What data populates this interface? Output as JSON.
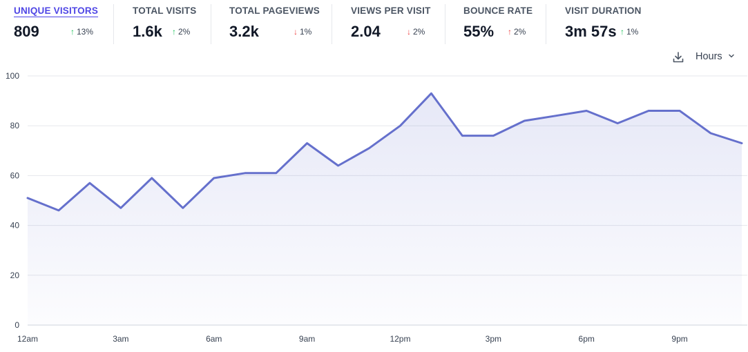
{
  "stats": [
    {
      "label": "UNIQUE VISITORS",
      "value": "809",
      "change": "13%",
      "direction": "up",
      "active": true
    },
    {
      "label": "TOTAL VISITS",
      "value": "1.6k",
      "change": "2%",
      "direction": "up",
      "active": false
    },
    {
      "label": "TOTAL PAGEVIEWS",
      "value": "3.2k",
      "change": "1%",
      "direction": "down",
      "active": false
    },
    {
      "label": "VIEWS PER VISIT",
      "value": "2.04",
      "change": "2%",
      "direction": "down",
      "active": false
    },
    {
      "label": "BOUNCE RATE",
      "value": "55%",
      "change": "2%",
      "direction": "up",
      "active": false
    },
    {
      "label": "VISIT DURATION",
      "value": "3m 57s",
      "change": "1%",
      "direction": "up",
      "active": false
    }
  ],
  "controls": {
    "download_icon": "download-icon",
    "interval_label": "Hours",
    "interval_icon": "chevron-down-icon"
  },
  "colors": {
    "line": "#6570cc",
    "accent": "#4f46e5",
    "grid": "#e5e7eb",
    "up": "#22c55e",
    "down": "#ef4444"
  },
  "chart_data": {
    "type": "area",
    "x": [
      "12am",
      "1am",
      "2am",
      "3am",
      "4am",
      "5am",
      "6am",
      "7am",
      "8am",
      "9am",
      "10am",
      "11am",
      "12pm",
      "1pm",
      "2pm",
      "3pm",
      "4pm",
      "5pm",
      "6pm",
      "7pm",
      "8pm",
      "9pm",
      "10pm",
      "11pm"
    ],
    "xticks": [
      "12am",
      "3am",
      "6am",
      "9am",
      "12pm",
      "3pm",
      "6pm",
      "9pm"
    ],
    "series": [
      {
        "values": [
          51,
          46,
          57,
          47,
          59,
          47,
          59,
          61,
          61,
          73,
          64,
          71,
          80,
          93,
          76,
          76,
          82,
          84,
          86,
          81,
          86,
          86,
          77,
          73
        ]
      }
    ],
    "yticks": [
      0,
      20,
      40,
      60,
      80,
      100
    ],
    "ylim": [
      0,
      100
    ],
    "grid": true,
    "xlabel": "",
    "ylabel": ""
  }
}
